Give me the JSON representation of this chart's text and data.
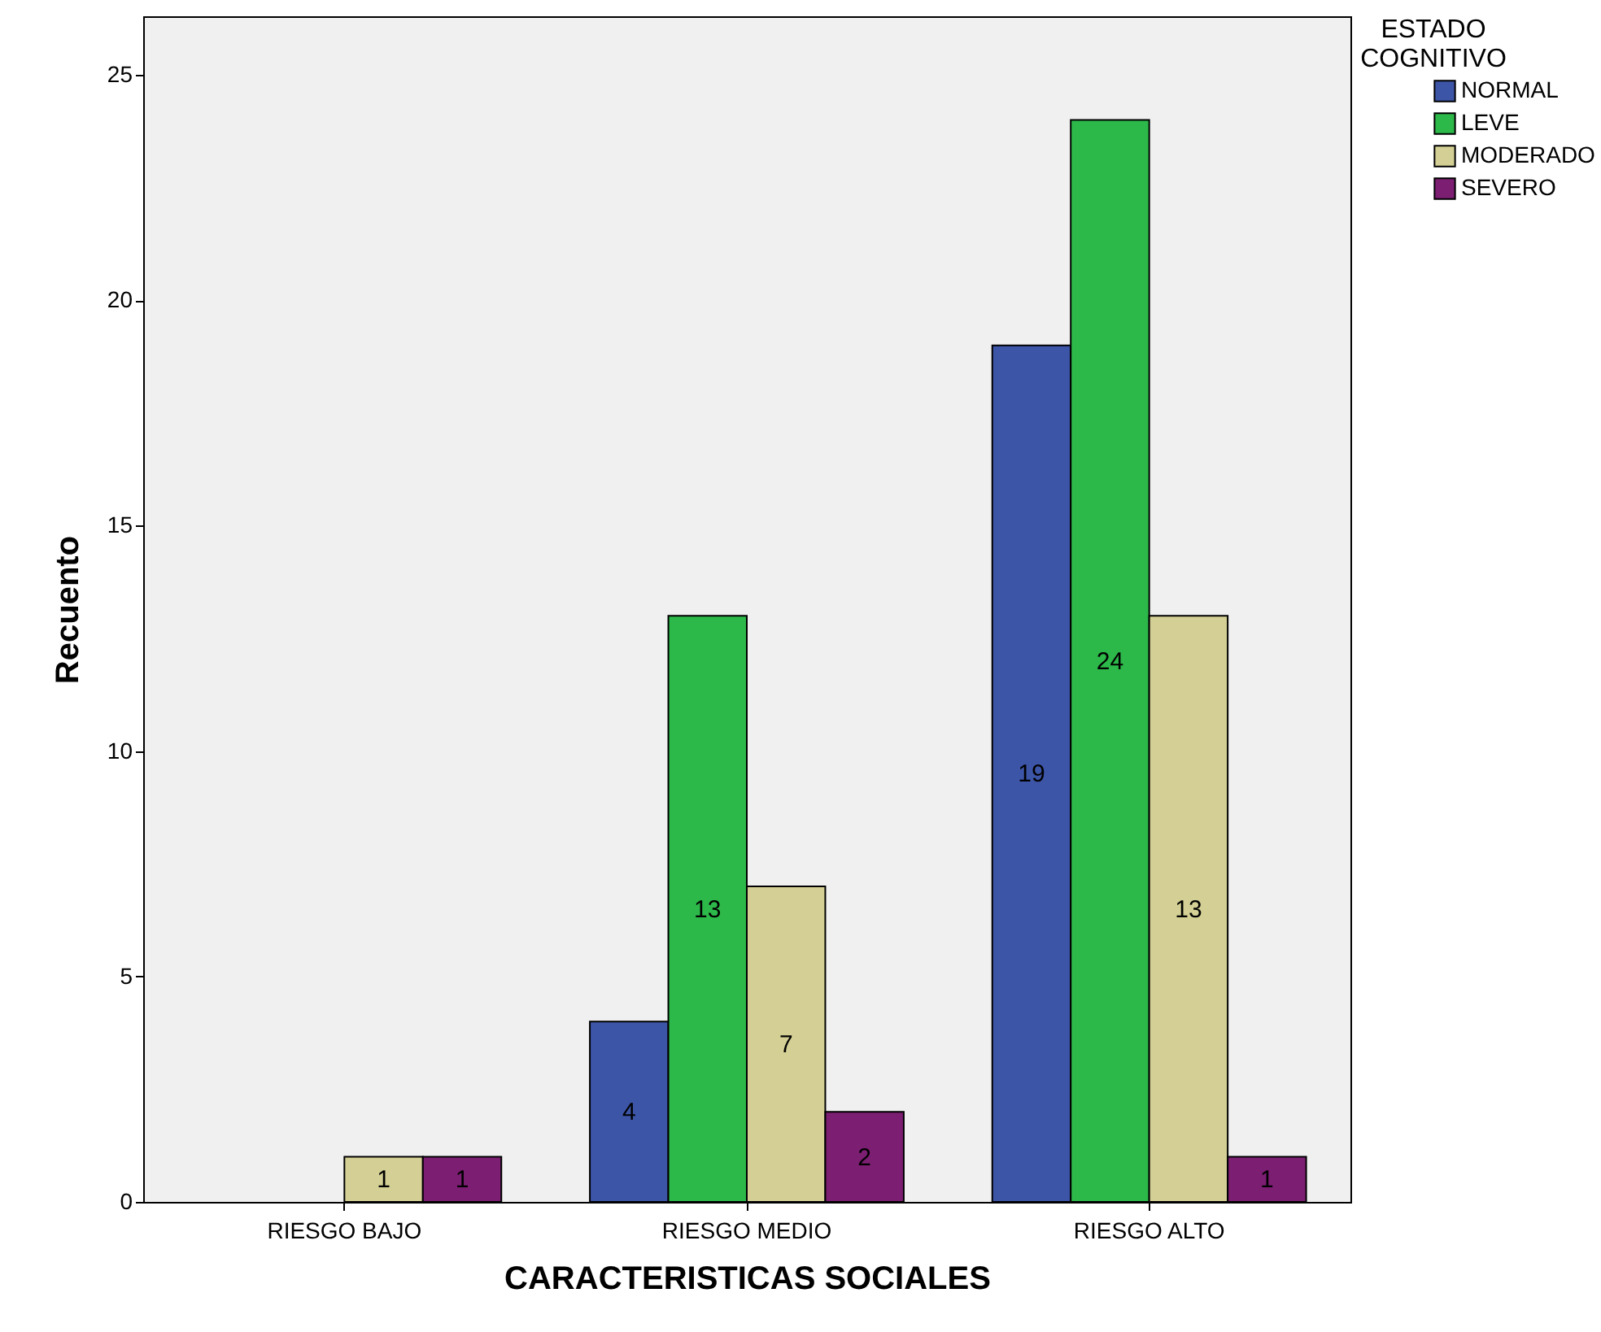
{
  "chart_data": {
    "type": "bar",
    "xlabel": "CARACTERISTICAS SOCIALES",
    "ylabel": "Recuento",
    "legend_title": "ESTADO COGNITIVO",
    "categories": [
      "RIESGO BAJO",
      "RIESGO MEDIO",
      "RIESGO ALTO"
    ],
    "series": [
      {
        "name": "NORMAL",
        "color": "#3d55a6",
        "values": [
          null,
          4,
          19
        ]
      },
      {
        "name": "LEVE",
        "color": "#2db84a",
        "values": [
          null,
          13,
          24
        ]
      },
      {
        "name": "MODERADO",
        "color": "#d4d095",
        "values": [
          1,
          7,
          13
        ]
      },
      {
        "name": "SEVERO",
        "color": "#7c1e72",
        "values": [
          1,
          2,
          1
        ]
      }
    ],
    "ylim": [
      0,
      26.3
    ],
    "yticks": [
      0,
      5,
      10,
      15,
      20,
      25
    ],
    "grid": false,
    "legend": "top right",
    "data_labels": true
  }
}
